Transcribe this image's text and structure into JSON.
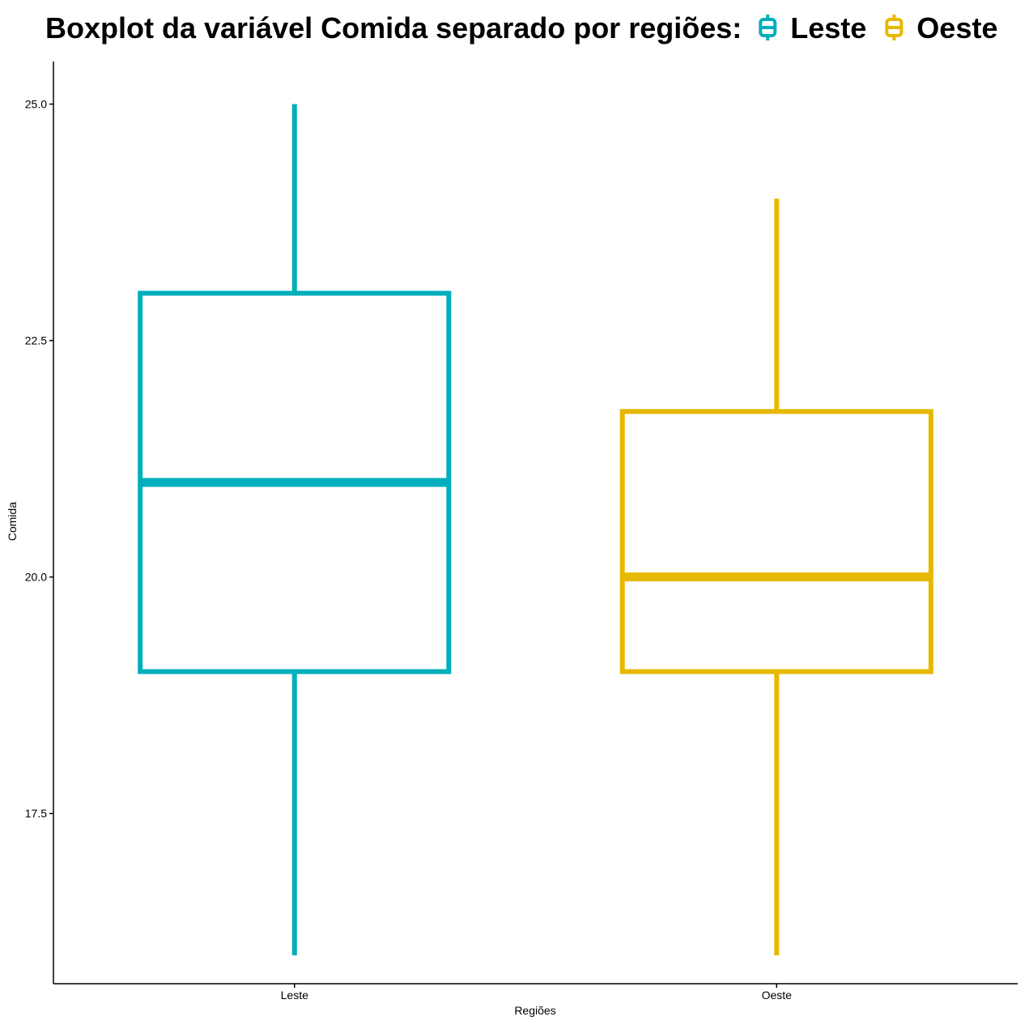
{
  "chart_data": {
    "type": "boxplot",
    "title": "Boxplot da variável Comida separado por regiões:",
    "xlabel": "Regiões",
    "ylabel": "Comida",
    "ylim": [
      15.7,
      25.45
    ],
    "yticks": [
      17.5,
      20.0,
      22.5,
      25.0
    ],
    "ytick_labels": [
      "17.5",
      "20.0",
      "22.5",
      "25.0"
    ],
    "grid": false,
    "legend_position": "top",
    "categories": [
      "Leste",
      "Oeste"
    ],
    "series": [
      {
        "name": "Leste",
        "color": "#00AFBB",
        "min": 16,
        "q1": 19,
        "median": 21,
        "q3": 23,
        "max": 25
      },
      {
        "name": "Oeste",
        "color": "#E7B800",
        "min": 16,
        "q1": 19,
        "median": 20,
        "q3": 21.75,
        "max": 24
      }
    ]
  }
}
